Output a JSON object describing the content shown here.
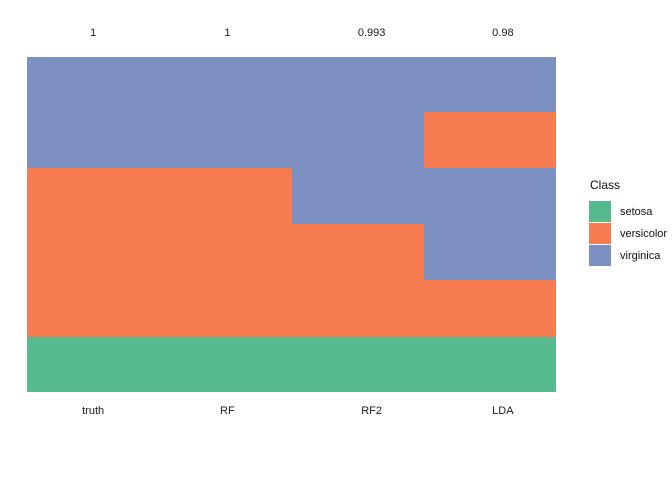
{
  "chart_data": {
    "type": "heatmap",
    "title": "",
    "legend_position": "right",
    "legend": {
      "title": "Class"
    },
    "classes": [
      {
        "name": "setosa",
        "color": "#56BA8F"
      },
      {
        "name": "versicolor",
        "color": "#F87C52"
      },
      {
        "name": "virginica",
        "color": "#7D90C2"
      }
    ],
    "columns": [
      {
        "label": "truth",
        "score": "1",
        "segments": [
          {
            "class": "virginica",
            "from": 0,
            "to": 0.3304
          },
          {
            "class": "versicolor",
            "from": 0.3304,
            "to": 0.8349
          },
          {
            "class": "setosa",
            "from": 0.8349,
            "to": 1
          }
        ]
      },
      {
        "label": "RF",
        "score": "1",
        "segments": [
          {
            "class": "virginica",
            "from": 0,
            "to": 0.3304
          },
          {
            "class": "versicolor",
            "from": 0.3304,
            "to": 0.8349
          },
          {
            "class": "setosa",
            "from": 0.8349,
            "to": 1
          }
        ]
      },
      {
        "label": "RF2",
        "score": "0.993",
        "segments": [
          {
            "class": "virginica",
            "from": 0,
            "to": 0.4985
          },
          {
            "class": "versicolor",
            "from": 0.4985,
            "to": 0.8349
          },
          {
            "class": "setosa",
            "from": 0.8349,
            "to": 1
          }
        ]
      },
      {
        "label": "LDA",
        "score": "0.98",
        "segments": [
          {
            "class": "virginica",
            "from": 0,
            "to": 0.1642
          },
          {
            "class": "versicolor",
            "from": 0.1642,
            "to": 0.3313
          },
          {
            "class": "virginica",
            "from": 0.3313,
            "to": 0.6657
          },
          {
            "class": "versicolor",
            "from": 0.6657,
            "to": 0.8349
          },
          {
            "class": "setosa",
            "from": 0.8349,
            "to": 1
          }
        ]
      }
    ]
  }
}
